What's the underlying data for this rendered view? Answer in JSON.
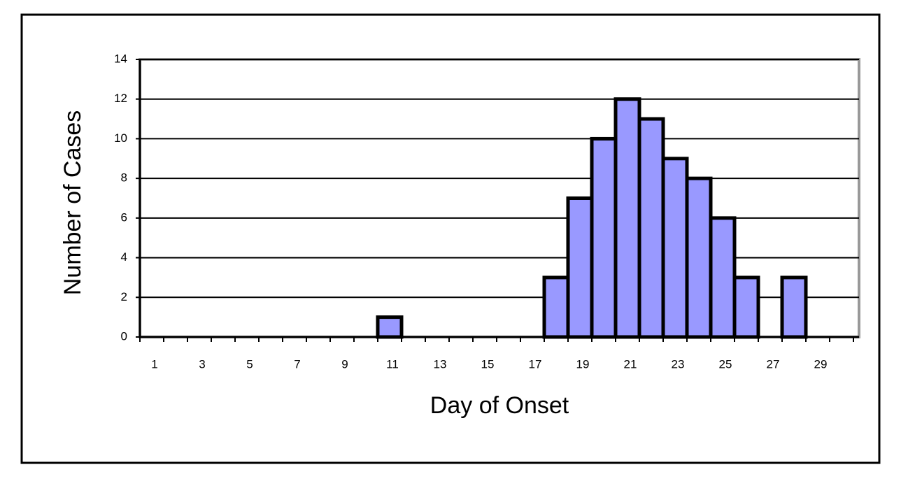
{
  "chart_data": {
    "type": "bar",
    "x_label": "Day of Onset",
    "y_label": "Number of Cases",
    "categories": [
      "1",
      null,
      "3",
      null,
      "5",
      null,
      "7",
      null,
      "9",
      null,
      "11",
      null,
      "13",
      null,
      "15",
      null,
      "17",
      null,
      "19",
      null,
      "21",
      null,
      "23",
      null,
      "25",
      null,
      "27",
      null,
      "29",
      null
    ],
    "values": [
      0,
      0,
      0,
      0,
      0,
      0,
      0,
      0,
      0,
      0,
      1,
      0,
      0,
      0,
      0,
      0,
      0,
      3,
      7,
      10,
      12,
      11,
      9,
      8,
      6,
      3,
      0,
      3,
      0,
      0
    ],
    "color": "#9999ff",
    "ylim": [
      0,
      14
    ],
    "yticks": [
      0,
      2,
      4,
      6,
      8,
      10,
      12,
      14
    ],
    "grid": true
  }
}
